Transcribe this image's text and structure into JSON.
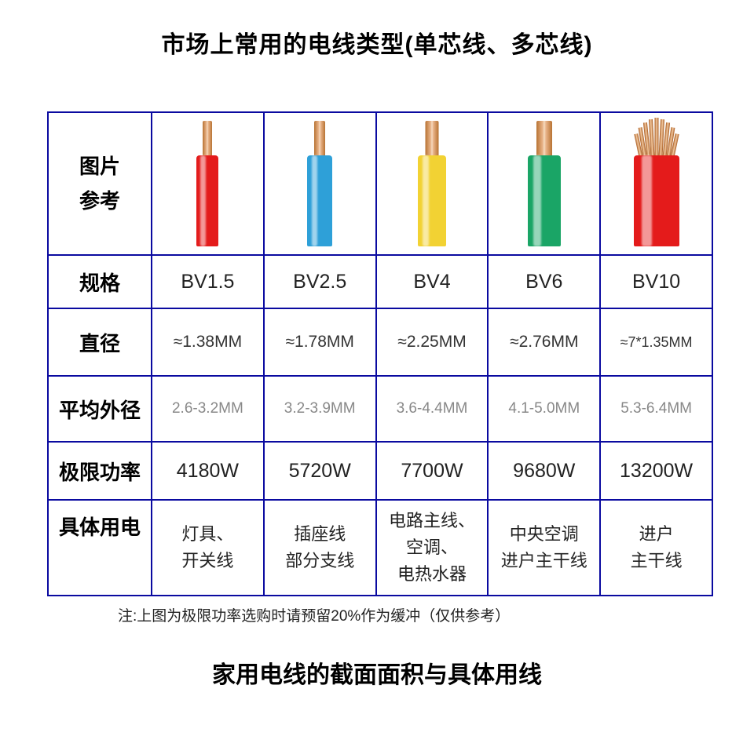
{
  "title": "市场上常用的电线类型(单芯线、多芯线)",
  "subtitle": "家用电线的截面面积与具体用线",
  "footnote": "注:上图为极限功率选购时请预留20%作为缓冲（仅供参考）",
  "border_color": "#0a0aa0",
  "row_labels": {
    "image": "图片\n参考",
    "spec": "规格",
    "diameter": "直径",
    "avg_outer": "平均外径",
    "max_power": "极限功率",
    "usage": "具体用电"
  },
  "wires": [
    {
      "spec": "BV1.5",
      "diameter": "≈1.38MM",
      "avg_outer": "2.6-3.2MM",
      "max_power": "4180W",
      "usage": "灯具、\n开关线",
      "jacket_color": "#e41b1b",
      "core_width": 12,
      "jacket_width": 28,
      "core_height": 46,
      "jacket_height": 116,
      "multi_strand": false
    },
    {
      "spec": "BV2.5",
      "diameter": "≈1.78MM",
      "avg_outer": "3.2-3.9MM",
      "max_power": "5720W",
      "usage": "插座线\n部分支线",
      "jacket_color": "#2ea0d8",
      "core_width": 14,
      "jacket_width": 32,
      "core_height": 46,
      "jacket_height": 116,
      "multi_strand": false
    },
    {
      "spec": "BV4",
      "diameter": "≈2.25MM",
      "avg_outer": "3.6-4.4MM",
      "max_power": "7700W",
      "usage": "电路主线、\n空调、\n电热水器",
      "jacket_color": "#f2d233",
      "core_width": 17,
      "jacket_width": 36,
      "core_height": 46,
      "jacket_height": 116,
      "multi_strand": false
    },
    {
      "spec": "BV6",
      "diameter": "≈2.76MM",
      "avg_outer": "4.1-5.0MM",
      "max_power": "9680W",
      "usage": "中央空调\n进户主干线",
      "jacket_color": "#1aa566",
      "core_width": 20,
      "jacket_width": 42,
      "core_height": 46,
      "jacket_height": 116,
      "multi_strand": false
    },
    {
      "spec": "BV10",
      "diameter": "≈7*1.35MM",
      "diameter_small": true,
      "avg_outer": "5.3-6.4MM",
      "max_power": "13200W",
      "usage": "进户\n主干线",
      "jacket_color": "#e41b1b",
      "core_width": 48,
      "jacket_width": 58,
      "core_height": 46,
      "jacket_height": 116,
      "multi_strand": true,
      "strand_count": 9,
      "strand_width": 5,
      "strand_heights": [
        30,
        38,
        44,
        48,
        50,
        48,
        44,
        38,
        30
      ]
    }
  ]
}
